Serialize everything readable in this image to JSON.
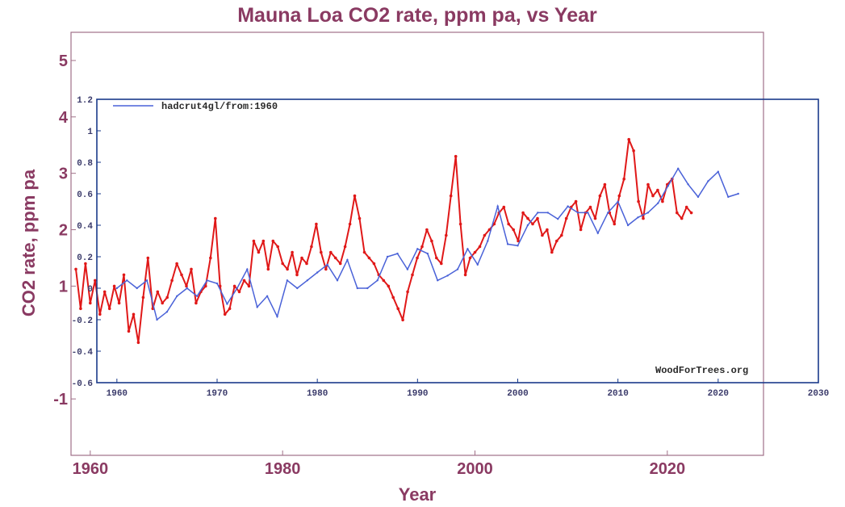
{
  "chart_data": [
    {
      "type": "line",
      "title": "Mauna Loa CO2 rate, ppm pa, vs Year",
      "xlabel": "Year",
      "ylabel": "CO2 rate, ppm pa",
      "xlim": [
        1958,
        2030
      ],
      "ylim": [
        -2,
        5.5
      ],
      "x_ticks": [
        1960,
        1980,
        2000,
        2020
      ],
      "x_tick_labels": [
        "1960",
        "1980",
        "2000",
        "2020"
      ],
      "y_ticks": [
        -1,
        1,
        2,
        3,
        4,
        5
      ],
      "y_tick_labels": [
        "-1",
        "1",
        "2",
        "3",
        "4",
        "5"
      ],
      "color": "#e01818",
      "series": [
        {
          "name": "Mauna Loa CO2 rate (monthly)",
          "x": [
            1958.5,
            1959,
            1959.5,
            1960,
            1960.5,
            1961,
            1961.5,
            1962,
            1962.5,
            1963,
            1963.5,
            1964,
            1964.5,
            1965,
            1965.5,
            1966,
            1966.5,
            1967,
            1967.5,
            1968,
            1968.5,
            1969,
            1969.5,
            1970,
            1970.5,
            1971,
            1971.5,
            1972,
            1972.5,
            1973,
            1973.5,
            1974,
            1974.5,
            1975,
            1975.5,
            1976,
            1976.5,
            1977,
            1977.5,
            1978,
            1978.5,
            1979,
            1979.5,
            1980,
            1980.5,
            1981,
            1981.5,
            1982,
            1982.5,
            1983,
            1983.5,
            1984,
            1984.5,
            1985,
            1985.5,
            1986,
            1986.5,
            1987,
            1987.5,
            1988,
            1988.5,
            1989,
            1989.5,
            1990,
            1990.5,
            1991,
            1991.5,
            1992,
            1992.5,
            1993,
            1993.5,
            1994,
            1994.5,
            1995,
            1995.5,
            1996,
            1996.5,
            1997,
            1997.5,
            1998,
            1998.5,
            1999,
            1999.5,
            2000,
            2000.5,
            2001,
            2001.5,
            2002,
            2002.5,
            2003,
            2003.5,
            2004,
            2004.5,
            2005,
            2005.5,
            2006,
            2006.5,
            2007,
            2007.5,
            2008,
            2008.5,
            2009,
            2009.5,
            2010,
            2010.5,
            2011,
            2011.5,
            2012,
            2012.5,
            2013,
            2013.5,
            2014,
            2014.5,
            2015,
            2015.5,
            2016,
            2016.5,
            2017,
            2017.5,
            2018,
            2018.5,
            2019,
            2019.5,
            2020,
            2020.5,
            2021,
            2021.5,
            2022,
            2022.5
          ],
          "y": [
            1.3,
            0.6,
            1.4,
            0.7,
            1.1,
            0.5,
            0.9,
            0.6,
            1.0,
            0.7,
            1.2,
            0.2,
            0.5,
            0.0,
            0.8,
            1.5,
            0.6,
            0.9,
            0.7,
            0.8,
            1.1,
            1.4,
            1.2,
            1.0,
            1.3,
            0.7,
            0.9,
            1.0,
            1.5,
            2.2,
            1.0,
            0.5,
            0.6,
            1.0,
            0.9,
            1.1,
            1.0,
            1.8,
            1.6,
            1.8,
            1.3,
            1.8,
            1.7,
            1.4,
            1.3,
            1.6,
            1.2,
            1.5,
            1.4,
            1.7,
            2.1,
            1.6,
            1.3,
            1.6,
            1.5,
            1.4,
            1.7,
            2.1,
            2.6,
            2.2,
            1.6,
            1.5,
            1.4,
            1.2,
            1.1,
            1.0,
            0.8,
            0.6,
            0.4,
            0.9,
            1.2,
            1.5,
            1.7,
            2.0,
            1.8,
            1.5,
            1.4,
            1.9,
            2.6,
            3.3,
            2.1,
            1.2,
            1.5,
            1.6,
            1.7,
            1.9,
            2.0,
            2.1,
            2.3,
            2.4,
            2.1,
            2.0,
            1.8,
            2.3,
            2.2,
            2.1,
            2.2,
            1.9,
            2.0,
            1.6,
            1.8,
            1.9,
            2.2,
            2.4,
            2.5,
            2.0,
            2.3,
            2.4,
            2.2,
            2.6,
            2.8,
            2.3,
            2.1,
            2.6,
            2.9,
            3.6,
            3.4,
            2.5,
            2.2,
            2.8,
            2.6,
            2.7,
            2.5,
            2.8,
            2.9,
            2.3,
            2.2,
            2.4,
            2.3
          ]
        }
      ]
    },
    {
      "type": "line",
      "credit": "WoodForTrees.org",
      "legend_position": "top-left",
      "xlim": [
        1958,
        2030
      ],
      "ylim": [
        -0.6,
        1.2
      ],
      "x_ticks": [
        1960,
        1970,
        1980,
        1990,
        2000,
        2010,
        2020,
        2030
      ],
      "x_tick_labels": [
        "1960",
        "1970",
        "1980",
        "1990",
        "2000",
        "2010",
        "2020",
        "2030"
      ],
      "y_ticks": [
        -0.6,
        -0.4,
        -0.2,
        0,
        0.2,
        0.4,
        0.6,
        0.8,
        1,
        1.2
      ],
      "y_tick_labels": [
        "-0.6",
        "-0.4",
        "-0.2",
        "0",
        "0.2",
        "0.4",
        "0.6",
        "0.8",
        "1",
        "1.2"
      ],
      "color": "#4a62d8",
      "series": [
        {
          "name": "hadcrut4gl/from:1960",
          "x": [
            1960,
            1961,
            1962,
            1963,
            1964,
            1965,
            1966,
            1967,
            1968,
            1969,
            1970,
            1971,
            1972,
            1973,
            1974,
            1975,
            1976,
            1977,
            1978,
            1979,
            1980,
            1981,
            1982,
            1983,
            1984,
            1985,
            1986,
            1987,
            1988,
            1989,
            1990,
            1991,
            1992,
            1993,
            1994,
            1995,
            1996,
            1997,
            1998,
            1999,
            2000,
            2001,
            2002,
            2003,
            2004,
            2005,
            2006,
            2007,
            2008,
            2009,
            2010,
            2011,
            2012,
            2013,
            2014,
            2015,
            2016,
            2017,
            2018,
            2019,
            2020,
            2021,
            2022
          ],
          "y": [
            0.0,
            0.05,
            0.0,
            0.05,
            -0.2,
            -0.15,
            -0.05,
            0.0,
            -0.05,
            0.05,
            0.03,
            -0.1,
            0.0,
            0.12,
            -0.12,
            -0.05,
            -0.18,
            0.05,
            0.0,
            0.05,
            0.1,
            0.15,
            0.05,
            0.18,
            0.0,
            0.0,
            0.05,
            0.2,
            0.22,
            0.12,
            0.25,
            0.22,
            0.05,
            0.08,
            0.12,
            0.25,
            0.15,
            0.3,
            0.52,
            0.28,
            0.27,
            0.4,
            0.48,
            0.48,
            0.44,
            0.52,
            0.48,
            0.48,
            0.35,
            0.48,
            0.55,
            0.4,
            0.45,
            0.48,
            0.54,
            0.65,
            0.76,
            0.66,
            0.58,
            0.68,
            0.74,
            0.58,
            0.6
          ]
        }
      ]
    }
  ]
}
